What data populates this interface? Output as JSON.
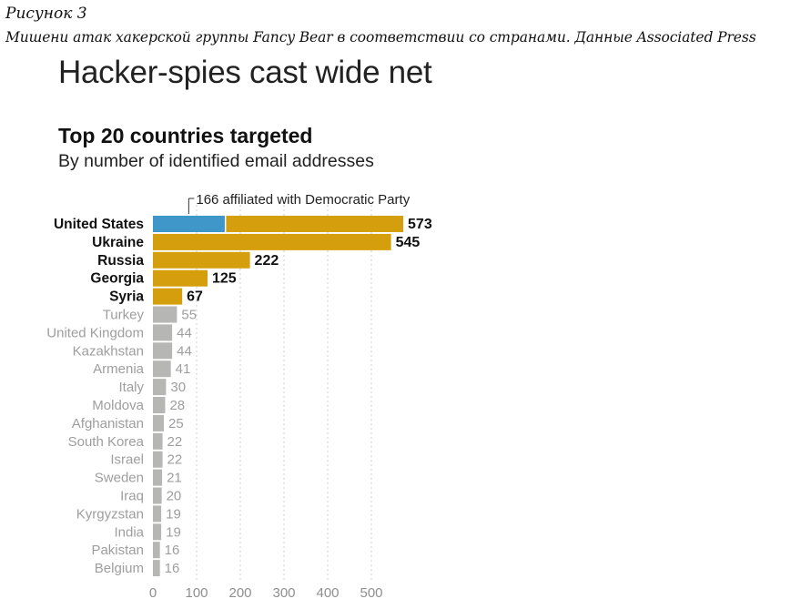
{
  "figure": {
    "label": "Рисунок 3",
    "caption": "Мишени атак хакерской группы Fancy Bear в соответствии со странами. Данные Associated Press"
  },
  "headline": "Hacker-spies cast wide net",
  "colors": {
    "highlight": "#D59E0D",
    "democratic": "#3E96C9",
    "other": "#B6B6B4",
    "highlight_label": "#111111",
    "other_label": "#9E9E9E",
    "grid": "#CFCFCF"
  },
  "chart_data": {
    "type": "bar",
    "orientation": "horizontal",
    "title": "Top 20 countries targeted",
    "subtitle": "By number of identified email addresses",
    "categories": [
      "United States",
      "Ukraine",
      "Russia",
      "Georgia",
      "Syria",
      "Turkey",
      "United Kingdom",
      "Kazakhstan",
      "Armenia",
      "Italy",
      "Moldova",
      "Afghanistan",
      "South Korea",
      "Israel",
      "Sweden",
      "Iraq",
      "Kyrgyzstan",
      "India",
      "Pakistan",
      "Belgium"
    ],
    "values": [
      573,
      545,
      222,
      125,
      67,
      55,
      44,
      44,
      41,
      30,
      28,
      25,
      22,
      22,
      21,
      20,
      19,
      19,
      16,
      16
    ],
    "highlighted_count": 5,
    "segment": {
      "category": "United States",
      "value": 166,
      "label": "166 affiliated with Democratic Party"
    },
    "xticks": [
      0,
      100,
      200,
      300,
      400,
      500
    ],
    "xlim": [
      0,
      580
    ],
    "grid": "vertical dashed"
  }
}
